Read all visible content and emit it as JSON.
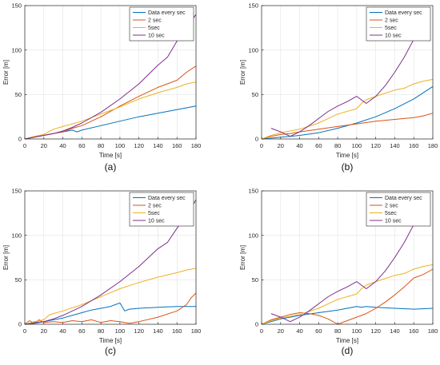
{
  "chart_data": [
    {
      "panel_label": "(a)",
      "type": "line",
      "xlabel": "Time [s]",
      "ylabel": "Error [m]",
      "xlim": [
        0,
        180
      ],
      "ylim": [
        0,
        150
      ],
      "xticks": [
        0,
        20,
        40,
        60,
        80,
        100,
        120,
        140,
        160,
        180
      ],
      "yticks": [
        0,
        50,
        100,
        150
      ],
      "grid": true,
      "legend_position": "top-right",
      "series": [
        {
          "name": "Data every sec",
          "color": "#0072BD",
          "x": [
            0,
            10,
            20,
            30,
            40,
            50,
            55,
            60,
            80,
            100,
            120,
            140,
            160,
            170,
            180
          ],
          "y": [
            0,
            2,
            4,
            6,
            8,
            10,
            8,
            10,
            15,
            20,
            25,
            29,
            33,
            35,
            37
          ]
        },
        {
          "name": "2 sec",
          "color": "#D95319",
          "x": [
            0,
            10,
            20,
            30,
            40,
            50,
            60,
            80,
            100,
            120,
            140,
            160,
            170,
            180
          ],
          "y": [
            0,
            2,
            4,
            6,
            8,
            12,
            15,
            25,
            37,
            48,
            58,
            66,
            75,
            82
          ]
        },
        {
          "name": "5sec",
          "color": "#EDB120",
          "x": [
            0,
            10,
            20,
            25,
            30,
            40,
            60,
            80,
            100,
            120,
            140,
            160,
            170,
            180
          ],
          "y": [
            0,
            3,
            5,
            8,
            11,
            14,
            20,
            28,
            36,
            45,
            52,
            58,
            62,
            64
          ]
        },
        {
          "name": "10 sec",
          "color": "#7E2F8E",
          "x": [
            0,
            10,
            20,
            30,
            40,
            50,
            60,
            80,
            100,
            120,
            140,
            150,
            160,
            170,
            180
          ],
          "y": [
            0,
            2,
            4,
            6,
            9,
            13,
            18,
            30,
            45,
            62,
            83,
            92,
            110,
            125,
            140
          ]
        }
      ]
    },
    {
      "panel_label": "(b)",
      "type": "line",
      "xlabel": "Time [s]",
      "ylabel": "Error [m]",
      "xlim": [
        0,
        180
      ],
      "ylim": [
        0,
        150
      ],
      "xticks": [
        0,
        20,
        40,
        60,
        80,
        100,
        120,
        140,
        160,
        180
      ],
      "yticks": [
        0,
        50,
        100,
        150
      ],
      "grid": true,
      "legend_position": "top-right",
      "series": [
        {
          "name": "Data every sec",
          "color": "#0072BD",
          "x": [
            0,
            10,
            20,
            30,
            40,
            60,
            80,
            100,
            120,
            140,
            160,
            180
          ],
          "y": [
            0,
            1,
            2,
            3,
            4,
            7,
            12,
            18,
            25,
            34,
            45,
            59
          ]
        },
        {
          "name": "2 sec",
          "color": "#D95319",
          "x": [
            0,
            10,
            20,
            30,
            40,
            60,
            80,
            100,
            120,
            140,
            160,
            170,
            180
          ],
          "y": [
            0,
            3,
            5,
            6,
            8,
            11,
            14,
            17,
            20,
            22,
            24,
            26,
            29
          ]
        },
        {
          "name": "5sec",
          "color": "#EDB120",
          "x": [
            0,
            10,
            20,
            30,
            40,
            60,
            80,
            100,
            105,
            110,
            120,
            140,
            150,
            160,
            170,
            180
          ],
          "y": [
            0,
            4,
            7,
            9,
            11,
            18,
            28,
            34,
            40,
            44,
            48,
            55,
            57,
            62,
            65,
            67
          ]
        },
        {
          "name": "10 sec",
          "color": "#7E2F8E",
          "x": [
            10,
            20,
            30,
            40,
            50,
            60,
            70,
            80,
            90,
            100,
            110,
            120,
            130,
            140,
            150,
            160
          ],
          "y": [
            12,
            8,
            3,
            8,
            15,
            23,
            31,
            37,
            42,
            48,
            40,
            48,
            60,
            75,
            92,
            112
          ]
        }
      ]
    },
    {
      "panel_label": "(c)",
      "type": "line",
      "xlabel": "Time [s]",
      "ylabel": "Error [m]",
      "xlim": [
        0,
        180
      ],
      "ylim": [
        0,
        150
      ],
      "xticks": [
        0,
        20,
        40,
        60,
        80,
        100,
        120,
        140,
        160,
        180
      ],
      "yticks": [
        0,
        50,
        100,
        150
      ],
      "grid": true,
      "legend_position": "top-right",
      "series": [
        {
          "name": "Data every sec",
          "color": "#0072BD",
          "x": [
            0,
            10,
            20,
            30,
            40,
            50,
            60,
            70,
            80,
            90,
            95,
            100,
            105,
            110,
            120,
            140,
            160,
            180
          ],
          "y": [
            0,
            2,
            3,
            5,
            7,
            10,
            13,
            16,
            18,
            20,
            22,
            24,
            15,
            17,
            18,
            19,
            20,
            20
          ]
        },
        {
          "name": "2 sec",
          "color": "#D95319",
          "x": [
            0,
            5,
            10,
            15,
            20,
            30,
            40,
            50,
            60,
            70,
            80,
            90,
            100,
            110,
            120,
            140,
            160,
            170,
            175,
            180
          ],
          "y": [
            0,
            4,
            1,
            5,
            2,
            3,
            2,
            4,
            3,
            5,
            2,
            4,
            3,
            1,
            3,
            8,
            15,
            22,
            30,
            35
          ]
        },
        {
          "name": "5sec",
          "color": "#EDB120",
          "x": [
            0,
            10,
            20,
            25,
            30,
            40,
            60,
            80,
            100,
            120,
            140,
            160,
            170,
            180
          ],
          "y": [
            0,
            3,
            5,
            10,
            12,
            15,
            22,
            31,
            40,
            47,
            53,
            58,
            61,
            63
          ]
        },
        {
          "name": "10 sec",
          "color": "#7E2F8E",
          "x": [
            0,
            10,
            20,
            30,
            40,
            60,
            80,
            100,
            120,
            140,
            150,
            160,
            170,
            180
          ],
          "y": [
            0,
            1,
            3,
            6,
            10,
            20,
            33,
            48,
            65,
            85,
            92,
            108,
            122,
            140
          ]
        }
      ]
    },
    {
      "panel_label": "(d)",
      "type": "line",
      "xlabel": "Time [s]",
      "ylabel": "Error [m]",
      "xlim": [
        0,
        180
      ],
      "ylim": [
        0,
        150
      ],
      "xticks": [
        0,
        20,
        40,
        60,
        80,
        100,
        120,
        140,
        160,
        180
      ],
      "yticks": [
        0,
        50,
        100,
        150
      ],
      "grid": true,
      "legend_position": "top-right",
      "series": [
        {
          "name": "Data every sec",
          "color": "#0072BD",
          "x": [
            0,
            10,
            20,
            30,
            40,
            60,
            80,
            90,
            100,
            105,
            110,
            120,
            140,
            160,
            180
          ],
          "y": [
            0,
            3,
            6,
            8,
            10,
            13,
            16,
            18,
            20,
            19,
            20,
            19,
            18,
            17,
            18
          ]
        },
        {
          "name": "2 sec",
          "color": "#D95319",
          "x": [
            0,
            10,
            20,
            30,
            40,
            50,
            60,
            70,
            80,
            90,
            100,
            110,
            120,
            130,
            140,
            150,
            160,
            170,
            180
          ],
          "y": [
            0,
            5,
            8,
            11,
            13,
            12,
            10,
            6,
            0,
            4,
            8,
            12,
            18,
            25,
            33,
            42,
            52,
            56,
            62
          ]
        },
        {
          "name": "5sec",
          "color": "#EDB120",
          "x": [
            0,
            10,
            20,
            30,
            40,
            60,
            80,
            100,
            105,
            110,
            120,
            140,
            150,
            160,
            170,
            180
          ],
          "y": [
            0,
            4,
            7,
            9,
            11,
            18,
            28,
            34,
            40,
            44,
            48,
            55,
            57,
            62,
            65,
            67
          ]
        },
        {
          "name": "10 sec",
          "color": "#7E2F8E",
          "x": [
            10,
            20,
            30,
            40,
            50,
            60,
            70,
            80,
            90,
            100,
            110,
            120,
            130,
            140,
            150,
            160
          ],
          "y": [
            12,
            8,
            3,
            8,
            15,
            23,
            31,
            37,
            42,
            48,
            40,
            48,
            60,
            75,
            92,
            112
          ]
        }
      ]
    }
  ]
}
